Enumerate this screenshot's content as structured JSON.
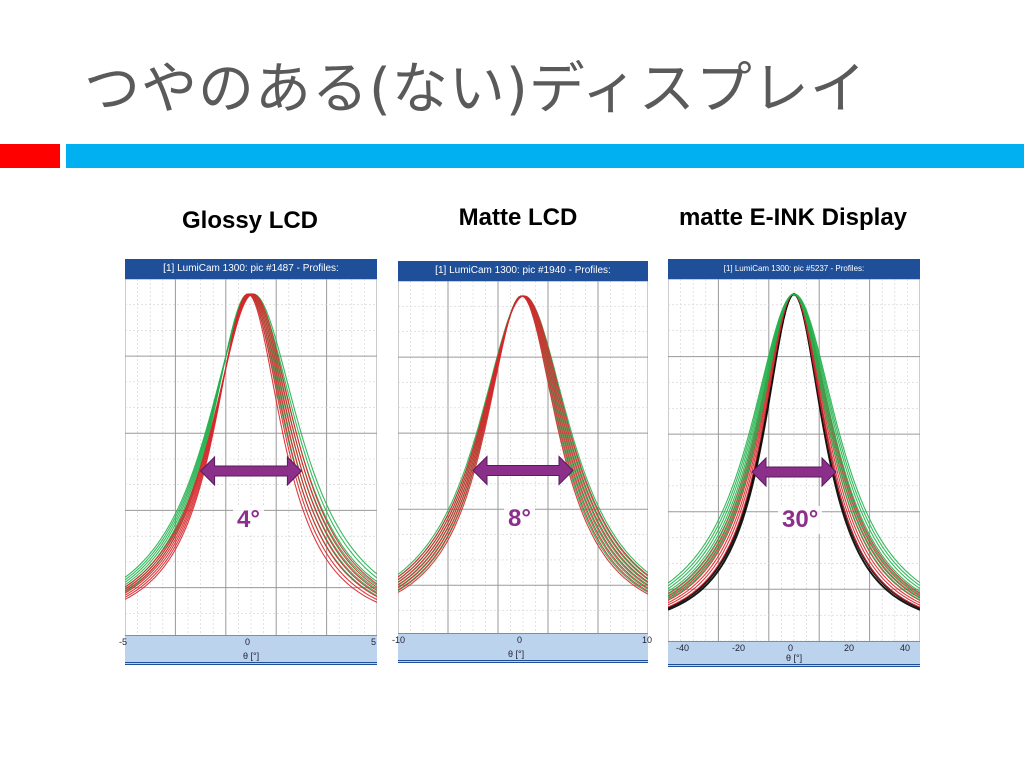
{
  "slide": {
    "title": "つやのある(ない)ディスプレイ"
  },
  "colors": {
    "red_accent": "#ff0000",
    "blue_accent": "#00b0f0",
    "curve_green": "#22b14c",
    "curve_red": "#d7262b",
    "curve_black": "#000000",
    "arrow_purple": "#8b2f8b",
    "header_blue": "#1f4f99"
  },
  "chart_data": [
    {
      "type": "line",
      "title": "Glossy  LCD",
      "header": "[1] LumiCam 1300: pic #1487 - Profiles:",
      "xlabel": "θ [°]",
      "xlim": [
        -5,
        5
      ],
      "x_ticks": [
        "-5",
        "0",
        "5"
      ],
      "annotation": "4°",
      "arrow_width_deg": 4,
      "series": [
        {
          "color": "green",
          "fwhm_deg": 4.0
        },
        {
          "color": "red",
          "fwhm_deg": 3.6
        }
      ]
    },
    {
      "type": "line",
      "title": "Matte  LCD",
      "header": "[1] LumiCam 1300: pic #1940 - Profiles:",
      "xlabel": "θ [°]",
      "xlim": [
        -10,
        10
      ],
      "x_ticks": [
        "-10",
        "0",
        "10"
      ],
      "annotation": "8°",
      "arrow_width_deg": 8,
      "series": [
        {
          "color": "green",
          "fwhm_deg": 8.0
        },
        {
          "color": "red",
          "fwhm_deg": 7.8
        }
      ]
    },
    {
      "type": "line",
      "title": "matte E-INK Display",
      "header": "[1] LumiCam 1300: pic #5237 - Profiles:",
      "xlabel": "θ [°]",
      "xlim": [
        -45,
        45
      ],
      "x_ticks": [
        "-40",
        "-20",
        "0",
        "20",
        "40"
      ],
      "annotation": "30°",
      "arrow_width_deg": 30,
      "series": [
        {
          "color": "black",
          "fwhm_deg": 26
        },
        {
          "color": "red",
          "fwhm_deg": 30
        },
        {
          "color": "green",
          "fwhm_deg": 34
        }
      ]
    }
  ]
}
